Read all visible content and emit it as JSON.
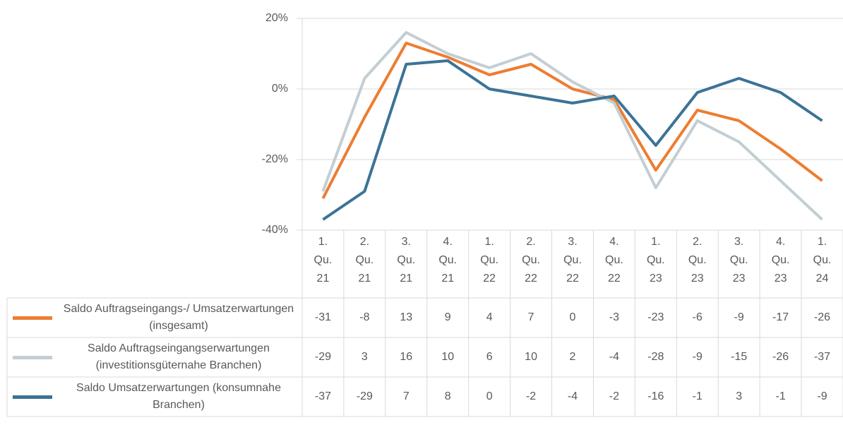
{
  "chart_data": {
    "type": "line",
    "categories": [
      "1. Qu. 21",
      "2. Qu. 21",
      "3. Qu. 21",
      "4. Qu. 21",
      "1. Qu. 22",
      "2. Qu. 22",
      "3. Qu. 22",
      "4. Qu. 22",
      "1. Qu. 23",
      "2. Qu. 23",
      "3. Qu. 23",
      "4. Qu. 23",
      "1. Qu. 24"
    ],
    "series": [
      {
        "name": "Saldo Auftragseingangs-/ Umsatzerwartungen (insgesamt)",
        "color": "#ed7d31",
        "values": [
          -31,
          -8,
          13,
          9,
          4,
          7,
          0,
          -3,
          -23,
          -6,
          -9,
          -17,
          -26
        ]
      },
      {
        "name": "Saldo Auftragseingangserwartungen (investitionsgüternahe Branchen)",
        "color": "#c3ced4",
        "values": [
          -29,
          3,
          16,
          10,
          6,
          10,
          2,
          -4,
          -28,
          -9,
          -15,
          -26,
          -37
        ]
      },
      {
        "name": "Saldo Umsatzerwartungen (konsumnahe Branchen)",
        "color": "#3b7396",
        "values": [
          -37,
          -29,
          7,
          8,
          0,
          -2,
          -4,
          -2,
          -16,
          -1,
          3,
          -1,
          -9
        ]
      }
    ],
    "ylim": [
      -40,
      20
    ],
    "yticks": [
      {
        "value": -40,
        "label": "-40%"
      },
      {
        "value": -20,
        "label": "-20%"
      },
      {
        "value": 0,
        "label": "0%"
      },
      {
        "value": 20,
        "label": "20%"
      }
    ],
    "grid": true
  }
}
